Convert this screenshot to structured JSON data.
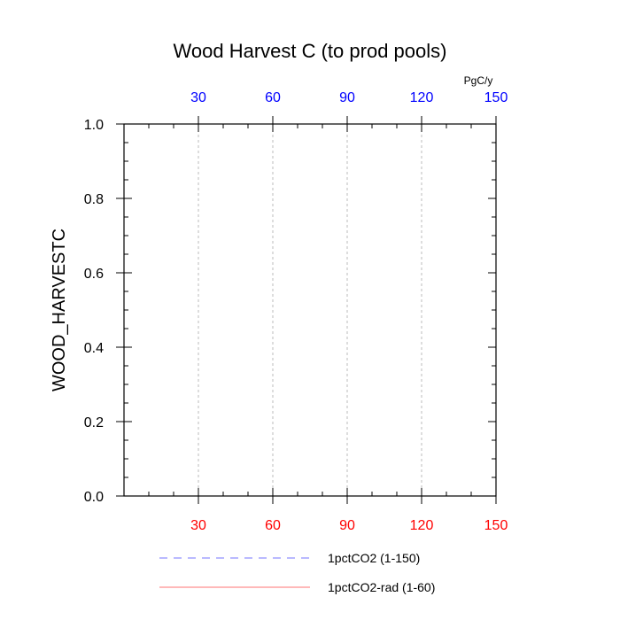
{
  "chart_data": {
    "type": "line",
    "title": "Wood Harvest C (to prod pools)",
    "ylabel": "WOOD_HARVESTC",
    "unit_label": "PgC/y",
    "xlim": [
      0,
      150
    ],
    "ylim": [
      0,
      1
    ],
    "x_ticks": [
      30,
      60,
      90,
      120,
      150
    ],
    "y_ticks": [
      0.0,
      0.2,
      0.4,
      0.6,
      0.8,
      1.0
    ],
    "y_tick_labels": [
      "0.0",
      "0.2",
      "0.4",
      "0.6",
      "0.8",
      "1.0"
    ],
    "top_axis_color": "#0000ff",
    "bottom_axis_color": "#ff0000",
    "grid": "vertical dashed at major x ticks",
    "series": [
      {
        "name": "1pctCO2 (1-150)",
        "color": "#0000ff",
        "style": "dashed",
        "x": [
          1,
          150
        ],
        "y": [
          0,
          0
        ]
      },
      {
        "name": "1pctCO2-rad (1-60)",
        "color": "#ff0000",
        "style": "solid",
        "x": [
          1,
          60
        ],
        "y": [
          0,
          0
        ]
      }
    ],
    "legend_position": "bottom"
  }
}
